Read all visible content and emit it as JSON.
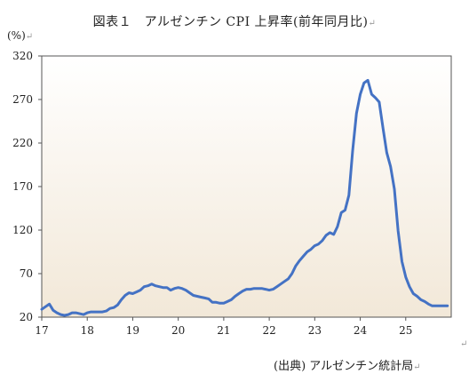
{
  "title": "図表１　アルゼンチン CPI 上昇率(前年同月比)",
  "y_unit": "(%)",
  "source": "(出典) アルゼンチン統計局",
  "para_mark": "↵",
  "colors": {
    "line": "#4472C4",
    "plot_bg_top": "#ffffff",
    "plot_bg_bottom": "#f2e8d8",
    "axis": "#555555"
  },
  "chart_data": {
    "type": "line",
    "title": "図表１　アルゼンチン CPI 上昇率(前年同月比)",
    "xlabel": "",
    "ylabel": "(%)",
    "xlim": [
      17,
      26
    ],
    "ylim": [
      20,
      320
    ],
    "x_ticks": [
      17,
      18,
      19,
      20,
      21,
      22,
      23,
      24,
      25
    ],
    "y_ticks": [
      20,
      70,
      120,
      170,
      220,
      270,
      320
    ],
    "grid": false,
    "series": [
      {
        "x": [
          17.0,
          17.083,
          17.167,
          17.25,
          17.333,
          17.417,
          17.5,
          17.583,
          17.667,
          17.75,
          17.833,
          17.917,
          18.0,
          18.083,
          18.167,
          18.25,
          18.333,
          18.417,
          18.5,
          18.583,
          18.667,
          18.75,
          18.833,
          18.917,
          19.0,
          19.083,
          19.167,
          19.25,
          19.333,
          19.417,
          19.5,
          19.583,
          19.667,
          19.75,
          19.833,
          19.917,
          20.0,
          20.083,
          20.167,
          20.25,
          20.333,
          20.417,
          20.5,
          20.583,
          20.667,
          20.75,
          20.833,
          20.917,
          21.0,
          21.083,
          21.167,
          21.25,
          21.333,
          21.417,
          21.5,
          21.583,
          21.667,
          21.75,
          21.833,
          21.917,
          22.0,
          22.083,
          22.167,
          22.25,
          22.333,
          22.417,
          22.5,
          22.583,
          22.667,
          22.75,
          22.833,
          22.917,
          23.0,
          23.083,
          23.167,
          23.25,
          23.333,
          23.417,
          23.5,
          23.583,
          23.667,
          23.75,
          23.833,
          23.917,
          24.0,
          24.083,
          24.167,
          24.25,
          24.333,
          24.417,
          24.5,
          24.583,
          24.667,
          24.75,
          24.833,
          24.917,
          25.0,
          25.083,
          25.167,
          25.25,
          25.333,
          25.417,
          25.5,
          25.583,
          25.667,
          25.75,
          25.833,
          25.917
        ],
        "y": [
          29,
          32,
          35,
          28,
          25,
          23,
          22,
          23,
          25,
          25,
          24,
          23,
          25,
          26,
          26,
          26,
          26,
          27,
          30,
          31,
          34,
          40,
          45,
          48,
          47,
          49,
          51,
          55,
          56,
          58,
          56,
          55,
          54,
          54,
          51,
          53,
          54,
          53,
          51,
          48,
          45,
          44,
          43,
          42,
          41,
          37,
          37,
          36,
          36,
          38,
          40,
          44,
          47,
          50,
          52,
          52,
          53,
          53,
          53,
          52,
          51,
          52,
          55,
          58,
          61,
          64,
          70,
          79,
          85,
          90,
          95,
          98,
          102,
          104,
          108,
          114,
          117,
          115,
          124,
          140,
          143,
          160,
          211,
          254,
          276,
          289,
          292,
          276,
          272,
          267,
          237,
          209,
          193,
          167,
          119,
          84,
          66,
          55,
          47,
          44,
          40,
          38,
          35,
          33,
          33,
          33,
          33,
          33
        ]
      }
    ]
  }
}
